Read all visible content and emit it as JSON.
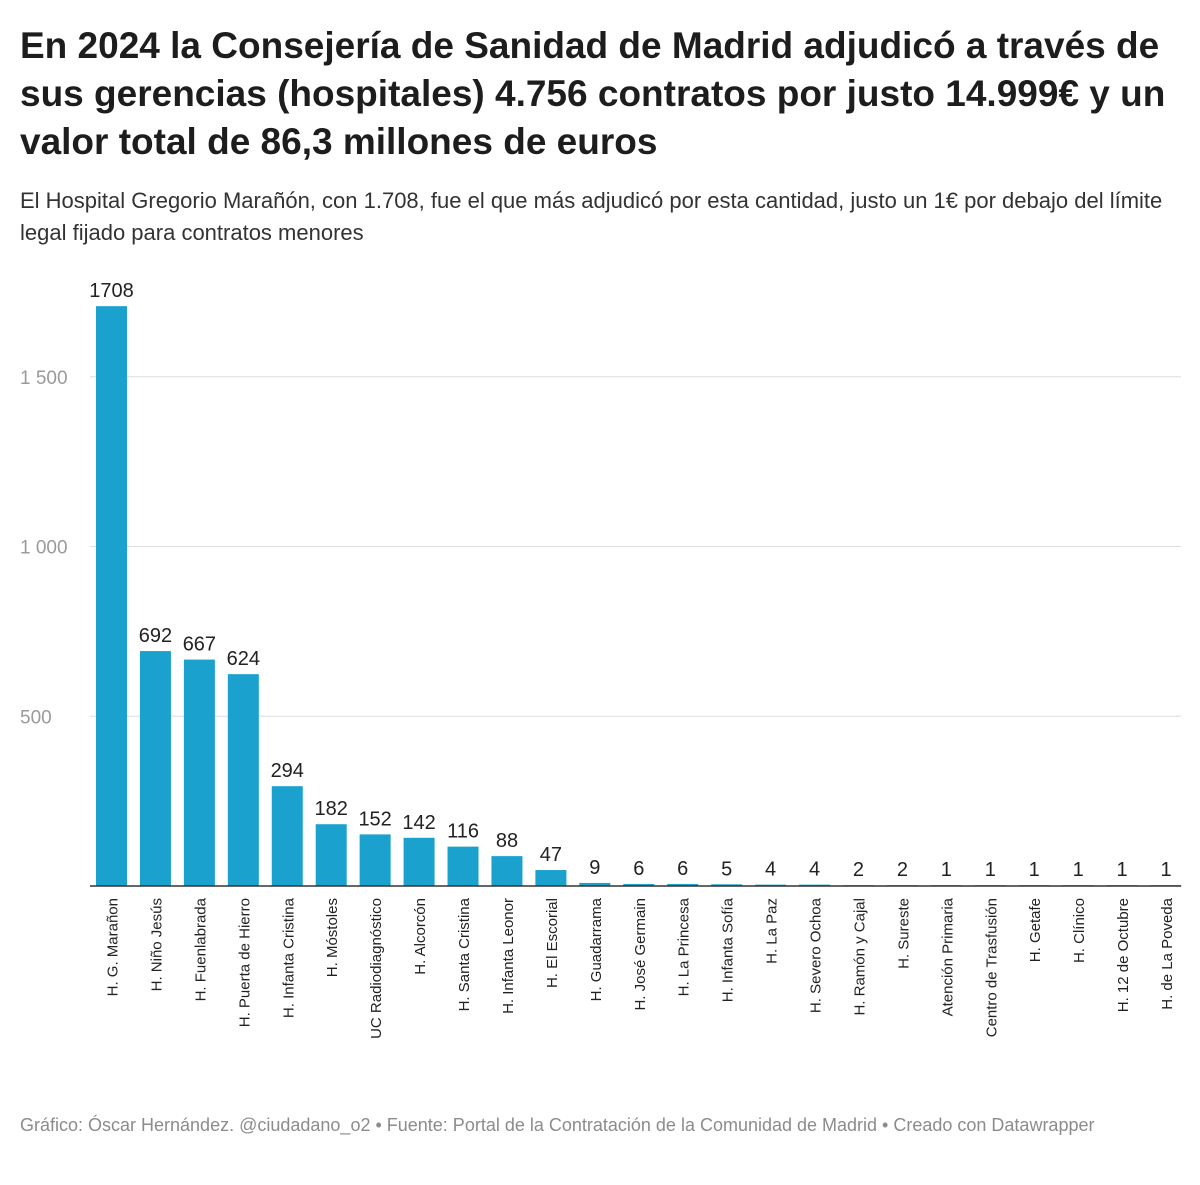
{
  "title": "En 2024 la Consejería de Sanidad de Madrid adjudicó a través de sus gerencias (hospitales) 4.756 contratos por justo 14.999€ y un valor total de 86,3 millones de euros",
  "subtitle": "El Hospital Gregorio Marañón, con 1.708, fue el que más adjudicó por esta cantidad, justo un 1€ por debajo del límite legal fijado para contratos menores",
  "footer": "Gráfico: Óscar Hernández. @ciudadano_o2 • Fuente: Portal de la Contratación de la Comunidad de Madrid • Creado con Datawrapper",
  "chart_data": {
    "type": "bar",
    "categories": [
      "H. G. Marañon",
      "H. Niño Jesús",
      "H. Fuenlabrada",
      "H. Puerta de Hierro",
      "H. Infanta Cristina",
      "H. Móstoles",
      "UC Radiodiagnóstico",
      "H. Alcorcón",
      "H. Santa Cristina",
      "H. Infanta Leonor",
      "H. El Escorial",
      "H. Guadarrama",
      "H. José Germain",
      "H. La Princesa",
      "H. Infanta Sofía",
      "H. La Paz",
      "H. Severo Ochoa",
      "H. Ramón y Cajal",
      "H. Sureste",
      "Atención Primaria",
      "Centro de Trasfusión",
      "H. Getafe",
      "H. Clínico",
      "H. 12 de Octubre",
      "H. de La Poveda"
    ],
    "values": [
      1708,
      692,
      667,
      624,
      294,
      182,
      152,
      142,
      116,
      88,
      47,
      9,
      6,
      6,
      5,
      4,
      4,
      2,
      2,
      1,
      1,
      1,
      1,
      1,
      1
    ],
    "yticks": [
      500,
      1000,
      1500
    ],
    "ytick_labels": [
      "500",
      "1 000",
      "1 500"
    ],
    "ylim": [
      0,
      1750
    ],
    "grid": true,
    "bar_color": "#1aa1ce"
  }
}
